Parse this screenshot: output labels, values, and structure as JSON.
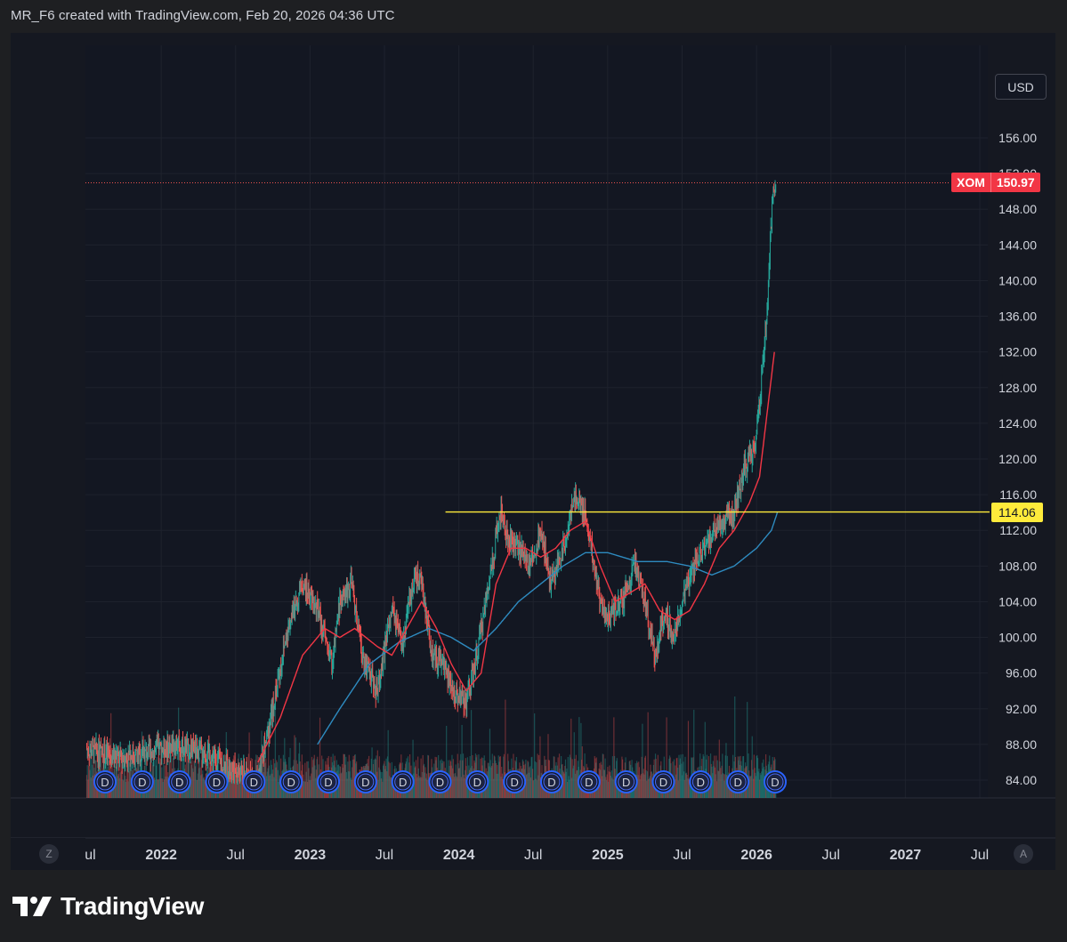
{
  "header": {
    "text": "MR_F6 created with TradingView.com, Feb 20, 2026 04:36 UTC"
  },
  "currency_button": "USD",
  "symbol_tag": {
    "symbol": "XOM",
    "price": "150.97"
  },
  "level_tag": "114.06",
  "time_buttons": {
    "left": "Z",
    "right": "A"
  },
  "footer": {
    "brand": "TradingView"
  },
  "colors": {
    "background": "#151821",
    "up": "#26a69a",
    "down": "#ef5350",
    "ma_fast": "#f23645",
    "ma_slow": "#2e8bc0",
    "level": "#ffeb3b",
    "dividend": "#2962ff"
  },
  "chart_data": {
    "type": "candlestick",
    "symbol": "XOM",
    "currency": "USD",
    "y_ticks": [
      "84.00",
      "88.00",
      "92.00",
      "96.00",
      "100.00",
      "104.00",
      "108.00",
      "112.00",
      "116.00",
      "120.00",
      "124.00",
      "128.00",
      "132.00",
      "136.00",
      "140.00",
      "144.00",
      "148.00",
      "152.00",
      "156.00"
    ],
    "ylim": [
      84,
      156
    ],
    "x_ticks": [
      "Jul",
      "2022",
      "Jul",
      "2023",
      "Jul",
      "2024",
      "Jul",
      "2025",
      "Jul",
      "2026",
      "Jul",
      "2027",
      "Jul"
    ],
    "x_tick_dates": [
      2021.5,
      2022.0,
      2022.5,
      2023.0,
      2023.5,
      2024.0,
      2024.5,
      2025.0,
      2025.5,
      2026.0,
      2026.5,
      2027.0,
      2027.5
    ],
    "xlim": [
      2021.5,
      2027.5
    ],
    "last_price": 150.97,
    "horizontal_level": {
      "value": 114.06,
      "from": 2023.91
    },
    "price_path": [
      [
        2021.5,
        87.5
      ],
      [
        2021.7,
        86.5
      ],
      [
        2021.9,
        87
      ],
      [
        2022.1,
        88
      ],
      [
        2022.3,
        87
      ],
      [
        2022.5,
        85
      ],
      [
        2022.65,
        84
      ],
      [
        2022.75,
        92
      ],
      [
        2022.85,
        101
      ],
      [
        2022.95,
        106
      ],
      [
        2023.05,
        103
      ],
      [
        2023.15,
        97
      ],
      [
        2023.2,
        104
      ],
      [
        2023.28,
        106
      ],
      [
        2023.35,
        98
      ],
      [
        2023.45,
        94
      ],
      [
        2023.55,
        103
      ],
      [
        2023.62,
        99
      ],
      [
        2023.7,
        107
      ],
      [
        2023.75,
        106
      ],
      [
        2023.82,
        98
      ],
      [
        2023.9,
        97
      ],
      [
        2023.95,
        94
      ],
      [
        2024.05,
        93
      ],
      [
        2024.1,
        96
      ],
      [
        2024.2,
        106
      ],
      [
        2024.28,
        114
      ],
      [
        2024.33,
        111
      ],
      [
        2024.4,
        110
      ],
      [
        2024.48,
        108
      ],
      [
        2024.55,
        112
      ],
      [
        2024.62,
        106
      ],
      [
        2024.7,
        110
      ],
      [
        2024.78,
        116
      ],
      [
        2024.85,
        114
      ],
      [
        2024.9,
        109
      ],
      [
        2024.95,
        104
      ],
      [
        2025.0,
        102
      ],
      [
        2025.1,
        104
      ],
      [
        2025.18,
        108
      ],
      [
        2025.25,
        104
      ],
      [
        2025.32,
        98
      ],
      [
        2025.38,
        103
      ],
      [
        2025.45,
        100
      ],
      [
        2025.5,
        104
      ],
      [
        2025.58,
        108
      ],
      [
        2025.65,
        110
      ],
      [
        2025.72,
        112
      ],
      [
        2025.78,
        113
      ],
      [
        2025.85,
        114
      ],
      [
        2025.92,
        119
      ],
      [
        2025.98,
        121
      ],
      [
        2026.02,
        126
      ],
      [
        2026.06,
        134
      ],
      [
        2026.09,
        143
      ],
      [
        2026.11,
        150
      ],
      [
        2026.13,
        150.97
      ]
    ],
    "ma_fast_path": [
      [
        2022.65,
        86
      ],
      [
        2022.8,
        91
      ],
      [
        2022.95,
        98
      ],
      [
        2023.1,
        101
      ],
      [
        2023.2,
        100
      ],
      [
        2023.3,
        101
      ],
      [
        2023.45,
        99
      ],
      [
        2023.55,
        98
      ],
      [
        2023.65,
        101
      ],
      [
        2023.75,
        104
      ],
      [
        2023.85,
        101
      ],
      [
        2023.95,
        97
      ],
      [
        2024.05,
        94
      ],
      [
        2024.15,
        96
      ],
      [
        2024.25,
        106
      ],
      [
        2024.35,
        110
      ],
      [
        2024.45,
        110
      ],
      [
        2024.55,
        109
      ],
      [
        2024.65,
        110
      ],
      [
        2024.75,
        112
      ],
      [
        2024.85,
        113
      ],
      [
        2024.95,
        108
      ],
      [
        2025.05,
        104
      ],
      [
        2025.15,
        105
      ],
      [
        2025.25,
        106
      ],
      [
        2025.35,
        103
      ],
      [
        2025.45,
        102
      ],
      [
        2025.55,
        103
      ],
      [
        2025.65,
        106
      ],
      [
        2025.75,
        110
      ],
      [
        2025.85,
        112
      ],
      [
        2025.95,
        115
      ],
      [
        2026.02,
        118
      ],
      [
        2026.07,
        125
      ],
      [
        2026.12,
        132
      ]
    ],
    "ma_slow_path": [
      [
        2023.05,
        88
      ],
      [
        2023.2,
        92
      ],
      [
        2023.4,
        97
      ],
      [
        2023.6,
        99.5
      ],
      [
        2023.8,
        101
      ],
      [
        2023.95,
        100
      ],
      [
        2024.1,
        98.5
      ],
      [
        2024.25,
        101
      ],
      [
        2024.4,
        104
      ],
      [
        2024.55,
        106
      ],
      [
        2024.7,
        108
      ],
      [
        2024.85,
        109.5
      ],
      [
        2025.0,
        109.5
      ],
      [
        2025.2,
        108.5
      ],
      [
        2025.4,
        108.5
      ],
      [
        2025.55,
        108
      ],
      [
        2025.7,
        107
      ],
      [
        2025.85,
        108
      ],
      [
        2026.0,
        110
      ],
      [
        2026.1,
        112
      ],
      [
        2026.14,
        114
      ]
    ],
    "dividend_markers": {
      "label": "D",
      "count": 19
    }
  }
}
